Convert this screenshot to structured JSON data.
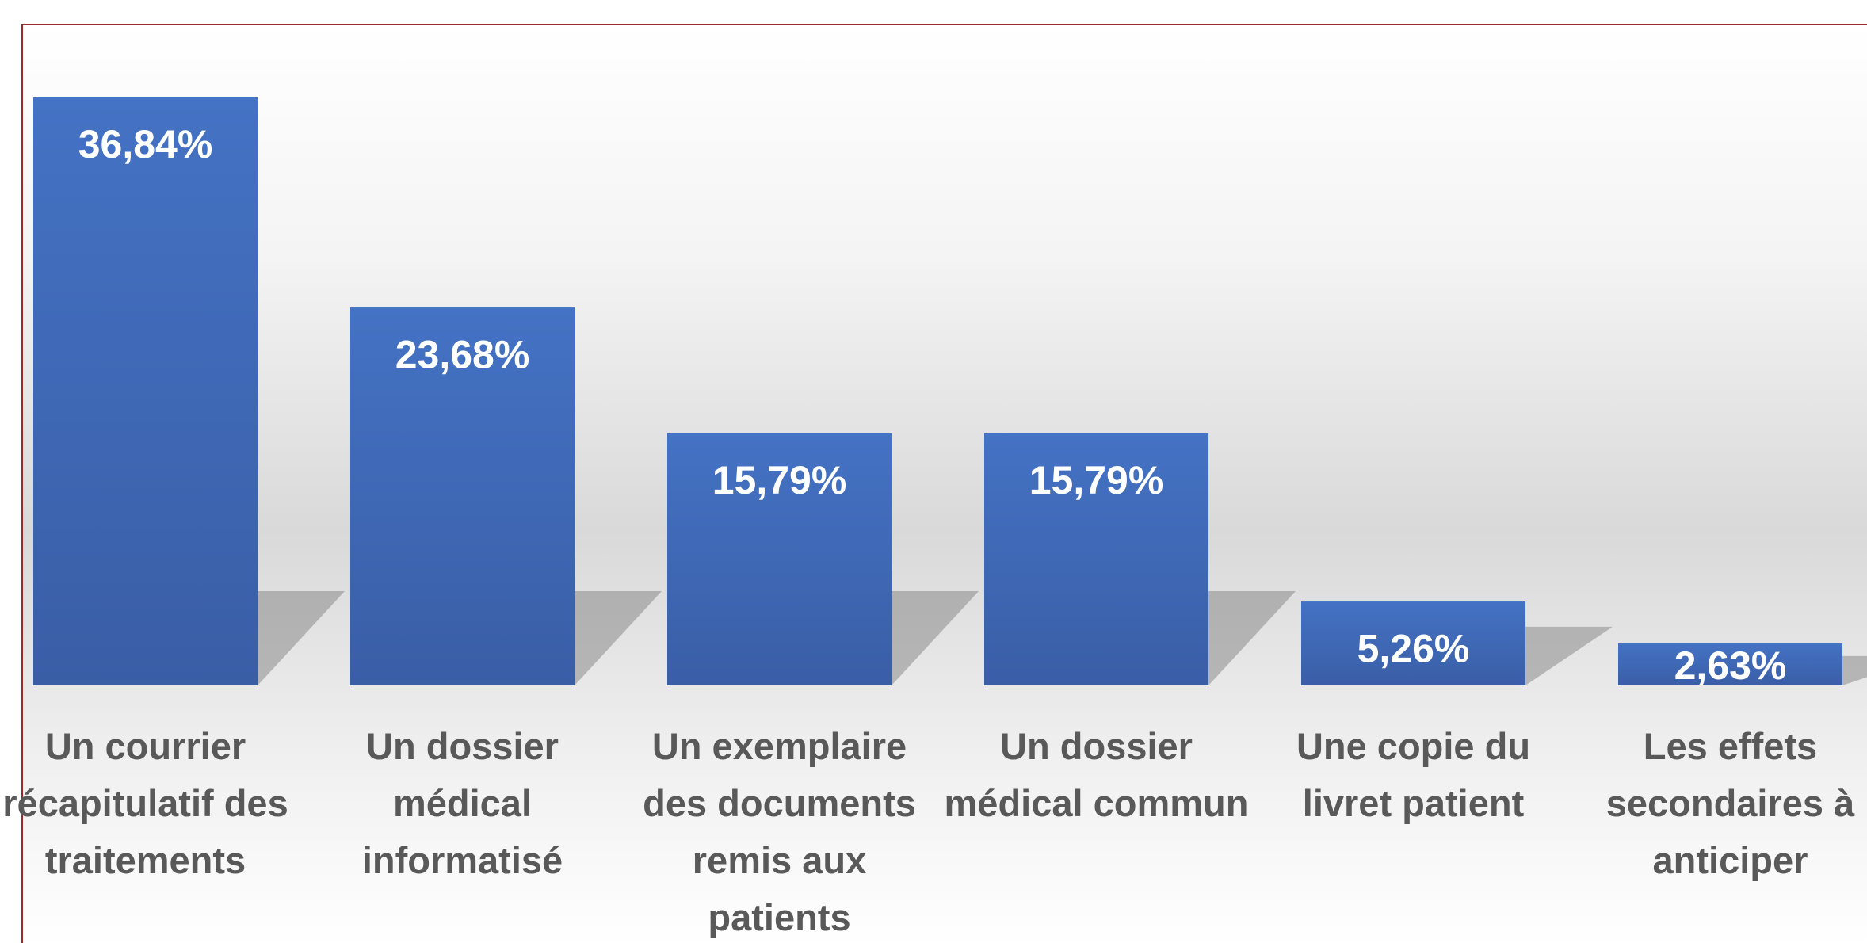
{
  "chart_data": {
    "type": "bar",
    "categories": [
      "Un courrier récapitulatif des traitements",
      "Un dossier médical informatisé",
      "Un exemplaire des documents remis aux patients",
      "Un dossier médical commun",
      "Une copie du livret patient",
      "Les effets secondaires à anticiper"
    ],
    "values": [
      36.84,
      23.68,
      15.79,
      15.79,
      5.26,
      2.63
    ],
    "value_labels": [
      "36,84%",
      "23,68%",
      "15,79%",
      "15,79%",
      "5,26%",
      "2,63%"
    ],
    "color": "#4472c4"
  }
}
